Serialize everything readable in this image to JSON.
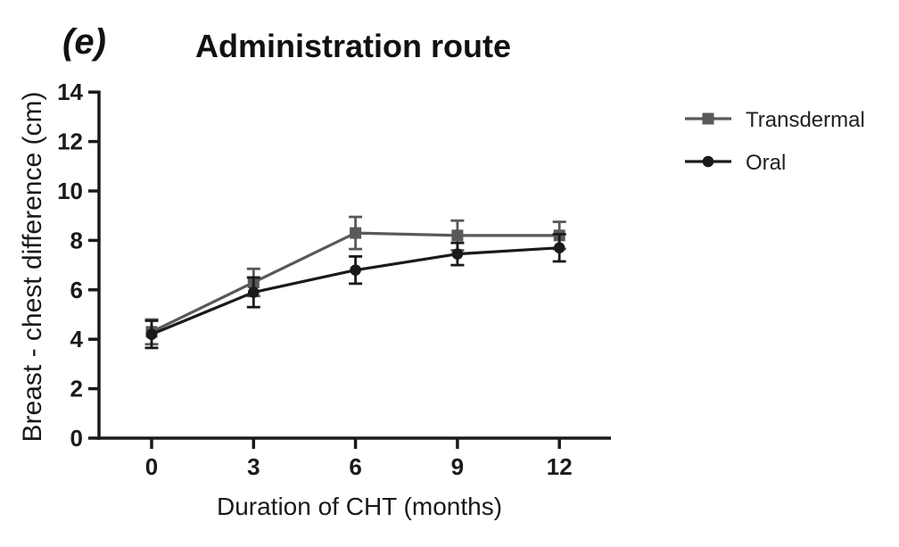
{
  "panel_label": "(e)",
  "chart_data": {
    "type": "line",
    "title": "Administration route",
    "xlabel": "Duration of CHT (months)",
    "ylabel": "Breast - chest difference (cm)",
    "x": [
      0,
      3,
      6,
      9,
      12
    ],
    "xticks": [
      0,
      3,
      6,
      9,
      12
    ],
    "yticks": [
      0,
      2,
      4,
      6,
      8,
      10,
      12,
      14
    ],
    "xlim": [
      0,
      13.5
    ],
    "ylim": [
      0,
      14
    ],
    "grid": false,
    "legend_position": "right",
    "error_bars": true,
    "series": [
      {
        "name": "Transdermal",
        "marker": "square",
        "color": "#595959",
        "values": [
          4.3,
          6.3,
          8.3,
          8.2,
          8.2
        ],
        "errors": [
          0.5,
          0.55,
          0.65,
          0.6,
          0.55
        ]
      },
      {
        "name": "Oral",
        "marker": "circle",
        "color": "#1a1a1a",
        "values": [
          4.2,
          5.9,
          6.8,
          7.45,
          7.7
        ],
        "errors": [
          0.55,
          0.6,
          0.55,
          0.45,
          0.55
        ]
      }
    ],
    "axis_color": "#1a1a1a"
  }
}
